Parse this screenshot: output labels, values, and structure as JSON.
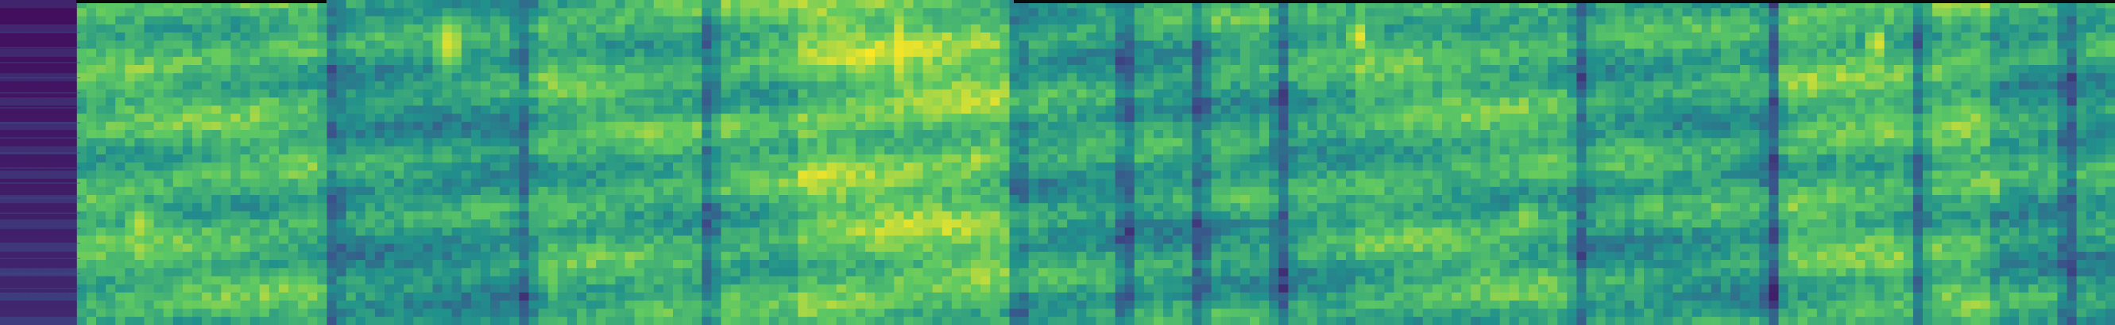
{
  "image": {
    "type": "spectrogram",
    "colormap": "viridis",
    "palette": {
      "low": "#440154",
      "low_mid": "#3b528b",
      "mid": "#21918c",
      "high_mid": "#5ec962",
      "high": "#fde725"
    },
    "segments": [
      {
        "start": 0.0,
        "end": 0.035,
        "kind": "silence",
        "energy": 0.05
      },
      {
        "start": 0.035,
        "end": 0.155,
        "kind": "speech",
        "energy": 0.64
      },
      {
        "start": 0.155,
        "end": 0.245,
        "kind": "speech",
        "energy": 0.52
      },
      {
        "start": 0.245,
        "end": 0.375,
        "kind": "speech",
        "energy": 0.62
      },
      {
        "start": 0.375,
        "end": 0.48,
        "kind": "speech",
        "energy": 0.74
      },
      {
        "start": 0.48,
        "end": 0.56,
        "kind": "speech",
        "energy": 0.55
      },
      {
        "start": 0.56,
        "end": 0.64,
        "kind": "speech",
        "energy": 0.57
      },
      {
        "start": 0.64,
        "end": 0.75,
        "kind": "speech",
        "energy": 0.63
      },
      {
        "start": 0.75,
        "end": 0.84,
        "kind": "speech",
        "energy": 0.56
      },
      {
        "start": 0.84,
        "end": 0.94,
        "kind": "speech",
        "energy": 0.66
      },
      {
        "start": 0.94,
        "end": 1.0,
        "kind": "speech",
        "energy": 0.54
      }
    ],
    "bright_regions": [
      {
        "t": 0.064,
        "f": 0.68,
        "w": 0.03,
        "h": 0.28,
        "intensity": 0.9
      },
      {
        "t": 0.21,
        "f": 0.12,
        "w": 0.03,
        "h": 0.35,
        "intensity": 0.95
      },
      {
        "t": 0.26,
        "f": 0.84,
        "w": 0.02,
        "h": 0.4,
        "intensity": 0.78
      },
      {
        "t": 0.39,
        "f": 0.92,
        "w": 0.03,
        "h": 0.12,
        "intensity": 0.9
      },
      {
        "t": 0.423,
        "f": 0.14,
        "w": 0.015,
        "h": 0.6,
        "intensity": 0.98
      },
      {
        "t": 0.46,
        "f": 0.48,
        "w": 0.02,
        "h": 0.2,
        "intensity": 0.92
      },
      {
        "t": 0.64,
        "f": 0.1,
        "w": 0.02,
        "h": 0.2,
        "intensity": 0.98
      },
      {
        "t": 0.72,
        "f": 0.66,
        "w": 0.02,
        "h": 0.24,
        "intensity": 0.88
      },
      {
        "t": 0.78,
        "f": 0.62,
        "w": 0.03,
        "h": 0.2,
        "intensity": 0.8
      },
      {
        "t": 0.885,
        "f": 0.12,
        "w": 0.02,
        "h": 0.22,
        "intensity": 0.97
      },
      {
        "t": 0.94,
        "f": 0.56,
        "w": 0.02,
        "h": 0.22,
        "intensity": 0.86
      }
    ],
    "dark_gaps": [
      0.155,
      0.246,
      0.333,
      0.478,
      0.53,
      0.565,
      0.604,
      0.745,
      0.836,
      0.905,
      0.976
    ]
  }
}
